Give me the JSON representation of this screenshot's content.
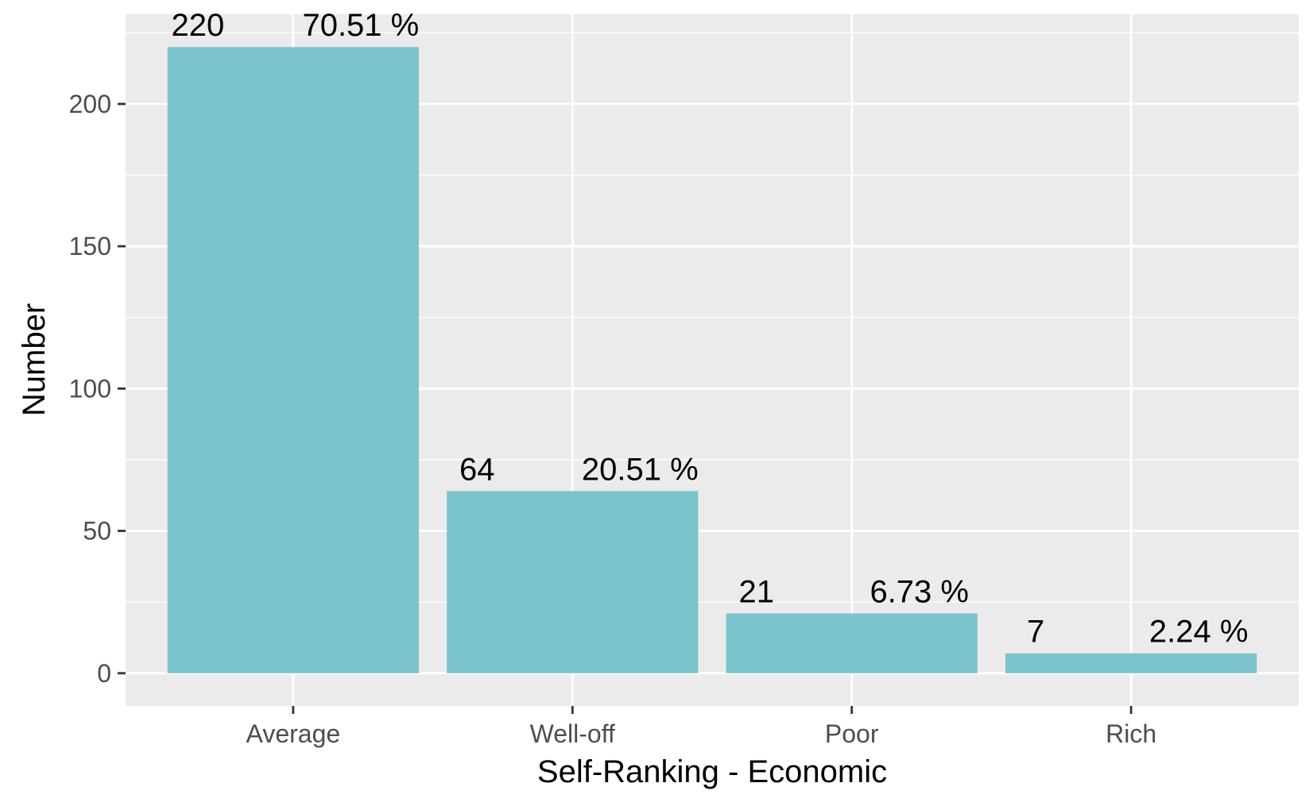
{
  "chart_data": {
    "type": "bar",
    "categories": [
      "Average",
      "Well-off",
      "Poor",
      "Rich"
    ],
    "values": [
      220,
      64,
      21,
      7
    ],
    "count_labels": [
      "220",
      "64",
      "21",
      "7"
    ],
    "percent_labels": [
      "70.51 %",
      "20.51 %",
      "6.73 %",
      "2.24 %"
    ],
    "xlabel": "Self-Ranking - Economic",
    "ylabel": "Number",
    "y_ticks": [
      0,
      50,
      100,
      150,
      200
    ],
    "ylim": [
      -11.5,
      231.5
    ],
    "grid": true,
    "colors": {
      "bar": "#7CC4CC",
      "panel": "#EBEBEB",
      "grid": "#FFFFFF",
      "tick_text": "#4D4D4D",
      "tick_mark": "#333333"
    }
  }
}
